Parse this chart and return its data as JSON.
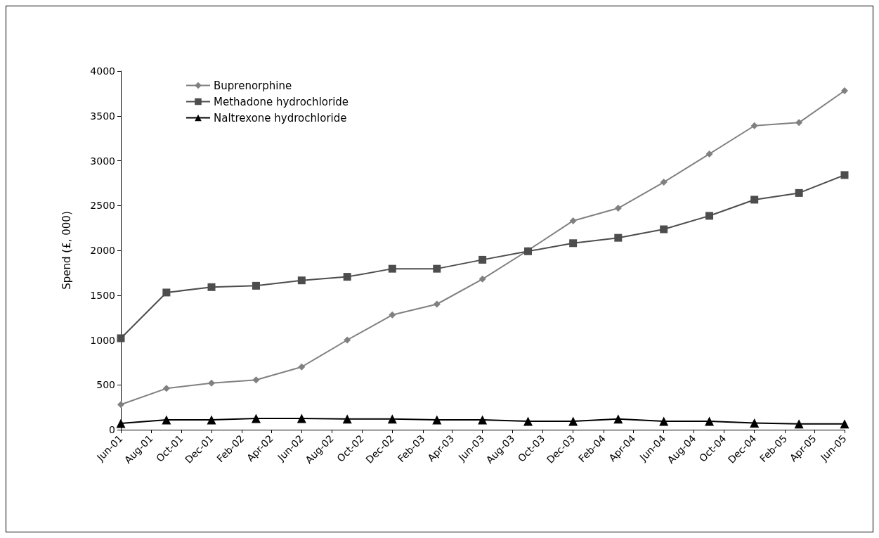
{
  "chart_data": {
    "type": "line",
    "ylabel": "Spend (£, 000)",
    "x": [
      "2001-06",
      "2001-09",
      "2001-12",
      "2002-03",
      "2002-06",
      "2002-09",
      "2002-12",
      "2003-03",
      "2003-06",
      "2003-09",
      "2003-12",
      "2004-03",
      "2004-06",
      "2004-09",
      "2004-12",
      "2005-03",
      "2005-06"
    ],
    "series": [
      {
        "name": "Buprenorphine",
        "color": "#808080",
        "marker": "diamond",
        "values": [
          280,
          460,
          520,
          555,
          700,
          1000,
          1280,
          1400,
          1680,
          2000,
          2330,
          2470,
          2760,
          3075,
          3390,
          3425,
          3780
        ]
      },
      {
        "name": "Methadone hydrochloride",
        "color": "#4d4d4d",
        "marker": "square",
        "values": [
          1020,
          1530,
          1590,
          1605,
          1665,
          1705,
          1795,
          1795,
          1895,
          1990,
          2080,
          2140,
          2235,
          2385,
          2565,
          2640,
          2840
        ]
      },
      {
        "name": "Naltrexone hydrochloride",
        "color": "#000000",
        "marker": "triangle",
        "values": [
          70,
          110,
          110,
          125,
          125,
          120,
          120,
          110,
          110,
          95,
          95,
          120,
          95,
          95,
          75,
          65,
          65
        ]
      }
    ],
    "xlim": [
      "2001-06",
      "2005-06"
    ],
    "xticks": [
      {
        "value": "2001-06",
        "label": "Jun-01"
      },
      {
        "value": "2001-08",
        "label": "Aug-01"
      },
      {
        "value": "2001-10",
        "label": "Oct-01"
      },
      {
        "value": "2001-12",
        "label": "Dec-01"
      },
      {
        "value": "2002-02",
        "label": "Feb-02"
      },
      {
        "value": "2002-04",
        "label": "Apr-02"
      },
      {
        "value": "2002-06",
        "label": "Jun-02"
      },
      {
        "value": "2002-08",
        "label": "Aug-02"
      },
      {
        "value": "2002-10",
        "label": "Oct-02"
      },
      {
        "value": "2002-12",
        "label": "Dec-02"
      },
      {
        "value": "2003-02",
        "label": "Feb-03"
      },
      {
        "value": "2003-04",
        "label": "Apr-03"
      },
      {
        "value": "2003-06",
        "label": "Jun-03"
      },
      {
        "value": "2003-08",
        "label": "Aug-03"
      },
      {
        "value": "2003-10",
        "label": "Oct-03"
      },
      {
        "value": "2003-12",
        "label": "Dec-03"
      },
      {
        "value": "2004-02",
        "label": "Feb-04"
      },
      {
        "value": "2004-04",
        "label": "Apr-04"
      },
      {
        "value": "2004-06",
        "label": "Jun-04"
      },
      {
        "value": "2004-08",
        "label": "Aug-04"
      },
      {
        "value": "2004-10",
        "label": "Oct-04"
      },
      {
        "value": "2004-12",
        "label": "Dec-04"
      },
      {
        "value": "2005-02",
        "label": "Feb-05"
      },
      {
        "value": "2005-04",
        "label": "Apr-05"
      },
      {
        "value": "2005-06",
        "label": "Jun-05"
      }
    ],
    "ylim": [
      0,
      4000
    ],
    "yticks": [
      0,
      500,
      1000,
      1500,
      2000,
      2500,
      3000,
      3500,
      4000
    ],
    "grid": false,
    "legend": "top left",
    "line_style": "solid"
  }
}
